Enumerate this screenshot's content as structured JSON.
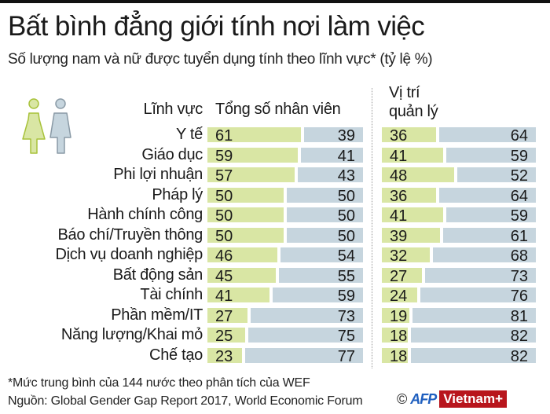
{
  "title": "Bất bình đẳng giới tính nơi làm việc",
  "subtitle": "Số lượng nam và nữ được tuyển dụng tính theo lĩnh vực* (tỷ lệ %)",
  "headers": {
    "sector": "Lĩnh vực",
    "total": "Tổng số nhân viên",
    "management_line1": "Vị trí",
    "management_line2": "quản lý"
  },
  "icons": {
    "female": "female-figure-icon",
    "male": "male-figure-icon"
  },
  "colors": {
    "female": "#d9e6a4",
    "male": "#c6d5de",
    "female_icon_stroke": "#a8c23a",
    "male_icon_stroke": "#8a9aa6",
    "brand_red": "#b8151c",
    "afp_blue": "#1f5fbf"
  },
  "rows": [
    {
      "sector": "Y tế",
      "total_f": "61",
      "total_m": "39",
      "mgmt_f": "36",
      "mgmt_m": "64"
    },
    {
      "sector": "Giáo dục",
      "total_f": "59",
      "total_m": "41",
      "mgmt_f": "41",
      "mgmt_m": "59"
    },
    {
      "sector": "Phi lợi nhuận",
      "total_f": "57",
      "total_m": "43",
      "mgmt_f": "48",
      "mgmt_m": "52"
    },
    {
      "sector": "Pháp lý",
      "total_f": "50",
      "total_m": "50",
      "mgmt_f": "36",
      "mgmt_m": "64"
    },
    {
      "sector": "Hành chính công",
      "total_f": "50",
      "total_m": "50",
      "mgmt_f": "41",
      "mgmt_m": "59"
    },
    {
      "sector": "Báo chí/Truyền thông",
      "total_f": "50",
      "total_m": "50",
      "mgmt_f": "39",
      "mgmt_m": "61"
    },
    {
      "sector": "Dịch vụ doanh nghiệp",
      "total_f": "46",
      "total_m": "54",
      "mgmt_f": "32",
      "mgmt_m": "68"
    },
    {
      "sector": "Bất động sản",
      "total_f": "45",
      "total_m": "55",
      "mgmt_f": "27",
      "mgmt_m": "73"
    },
    {
      "sector": "Tài chính",
      "total_f": "41",
      "total_m": "59",
      "mgmt_f": "24",
      "mgmt_m": "76"
    },
    {
      "sector": "Phần mềm/IT",
      "total_f": "27",
      "total_m": "73",
      "mgmt_f": "19",
      "mgmt_m": "81"
    },
    {
      "sector": "Năng lượng/Khai mỏ",
      "total_f": "25",
      "total_m": "75",
      "mgmt_f": "18",
      "mgmt_m": "82"
    },
    {
      "sector": "Chế tạo",
      "total_f": "23",
      "total_m": "77",
      "mgmt_f": "18",
      "mgmt_m": "82"
    }
  ],
  "footnote": "*Mức trung bình của 144 nước theo phân tích của WEF",
  "source": "Nguồn: Global Gender Gap Report 2017, World Economic Forum",
  "credit": {
    "copyright": "©",
    "afp": "AFP",
    "vietnamplus": "Vietnam+"
  },
  "chart_data": {
    "type": "bar",
    "orientation": "horizontal",
    "stacked": true,
    "normalized": true,
    "title": "Bất bình đẳng giới tính nơi làm việc",
    "subtitle": "Số lượng nam và nữ được tuyển dụng tính theo lĩnh vực* (tỷ lệ %)",
    "categories": [
      "Y tế",
      "Giáo dục",
      "Phi lợi nhuận",
      "Pháp lý",
      "Hành chính công",
      "Báo chí/Truyền thông",
      "Dịch vụ doanh nghiệp",
      "Bất động sản",
      "Tài chính",
      "Phần mềm/IT",
      "Năng lượng/Khai mỏ",
      "Chế tạo"
    ],
    "panels": [
      {
        "name": "Tổng số nhân viên",
        "series": [
          {
            "name": "Nữ",
            "color": "#d9e6a4",
            "values": [
              61,
              59,
              57,
              50,
              50,
              50,
              46,
              45,
              41,
              27,
              25,
              23
            ]
          },
          {
            "name": "Nam",
            "color": "#c6d5de",
            "values": [
              39,
              41,
              43,
              50,
              50,
              50,
              54,
              55,
              59,
              73,
              75,
              77
            ]
          }
        ]
      },
      {
        "name": "Vị trí quản lý",
        "series": [
          {
            "name": "Nữ",
            "color": "#d9e6a4",
            "values": [
              36,
              41,
              48,
              36,
              41,
              39,
              32,
              27,
              24,
              19,
              18,
              18
            ]
          },
          {
            "name": "Nam",
            "color": "#c6d5de",
            "values": [
              64,
              59,
              52,
              64,
              59,
              61,
              68,
              73,
              76,
              81,
              82,
              82
            ]
          }
        ]
      }
    ],
    "xlabel": "",
    "ylabel": "Lĩnh vực",
    "xlim": [
      0,
      100
    ],
    "legend": "icons: female (green), male (blue-grey)",
    "grid": false,
    "footnote": "*Mức trung bình của 144 nước theo phân tích của WEF",
    "source": "Nguồn: Global Gender Gap Report 2017, World Economic Forum"
  }
}
